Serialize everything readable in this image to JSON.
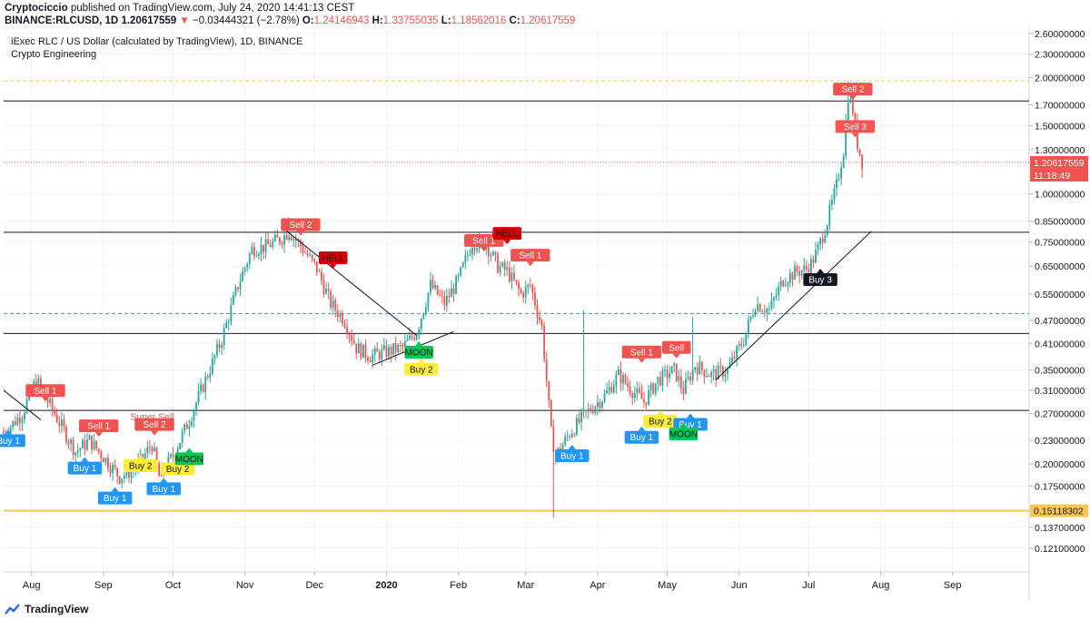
{
  "header": {
    "author": "Cryptociccio",
    "published_text": "published on TradingView.com, July 24, 2020 14:41:13 CEST",
    "symbol": "BINANCE:RLCUSD, 1D",
    "last": "1.20617559",
    "change": "−0.03444321 (−2.78%)",
    "o_label": "O:",
    "o": "1.24146943",
    "h_label": "H:",
    "h": "1.33755035",
    "l_label": "L:",
    "l": "1.18562016",
    "c_label": "C:",
    "c": "1.20617559"
  },
  "footer": {
    "brand": "TradingView"
  },
  "colors": {
    "up": "#26a69a",
    "down": "#ef5350",
    "buy": "#2196f3",
    "sell": "#ef5350",
    "moon": "#00c853",
    "hell": "#d50000",
    "buy2": "#ffeb3b",
    "buy3": "#131722",
    "yellow_level": "#f9c74f",
    "blue_dashed": "#2196f3"
  },
  "chart_data": {
    "type": "candlestick",
    "title": "iExec RLC / US Dollar (calculated by TradingView), 1D, BINANCE",
    "indicator": "Crypto Engineering",
    "y_scale": "log",
    "ylim": [
      0.105,
      2.7
    ],
    "xlim": [
      "2019-07-20",
      "2020-10-04"
    ],
    "y_ticks": [
      "2.60000000",
      "2.30000000",
      "2.00000000",
      "1.70000000",
      "1.50000000",
      "1.30000000",
      "1.00000000",
      "0.85000000",
      "0.75000000",
      "0.65000000",
      "0.55000000",
      "0.47000000",
      "0.41000000",
      "0.35000000",
      "0.31000000",
      "0.27000000",
      "0.23000000",
      "0.20000000",
      "0.17500000",
      "0.13700000",
      "0.12100000"
    ],
    "x_ticks": [
      {
        "date": "2019-08-01",
        "label": "Aug",
        "bold": false
      },
      {
        "date": "2019-09-01",
        "label": "Sep",
        "bold": false
      },
      {
        "date": "2019-10-01",
        "label": "Oct",
        "bold": false
      },
      {
        "date": "2019-11-01",
        "label": "Nov",
        "bold": false
      },
      {
        "date": "2019-12-01",
        "label": "Dec",
        "bold": false
      },
      {
        "date": "2020-01-01",
        "label": "2020",
        "bold": true
      },
      {
        "date": "2020-02-01",
        "label": "Feb",
        "bold": false
      },
      {
        "date": "2020-03-01",
        "label": "Mar",
        "bold": false
      },
      {
        "date": "2020-04-01",
        "label": "Apr",
        "bold": false
      },
      {
        "date": "2020-05-01",
        "label": "May",
        "bold": false
      },
      {
        "date": "2020-06-01",
        "label": "Jun",
        "bold": false
      },
      {
        "date": "2020-07-01",
        "label": "Jul",
        "bold": false
      },
      {
        "date": "2020-08-01",
        "label": "Aug",
        "bold": false
      },
      {
        "date": "2020-09-01",
        "label": "Sep",
        "bold": false
      }
    ],
    "price_labels": {
      "last": "1.20617559",
      "countdown": "11:18:49",
      "yellow": "0.15118302"
    },
    "close_anchors": [
      [
        "2019-07-20",
        0.24
      ],
      [
        "2019-07-28",
        0.27
      ],
      [
        "2019-08-03",
        0.33
      ],
      [
        "2019-08-08",
        0.29
      ],
      [
        "2019-08-14",
        0.25
      ],
      [
        "2019-08-20",
        0.215
      ],
      [
        "2019-08-26",
        0.23
      ],
      [
        "2019-09-02",
        0.205
      ],
      [
        "2019-09-08",
        0.185
      ],
      [
        "2019-09-15",
        0.195
      ],
      [
        "2019-09-22",
        0.225
      ],
      [
        "2019-09-25",
        0.185
      ],
      [
        "2019-10-01",
        0.21
      ],
      [
        "2019-10-08",
        0.26
      ],
      [
        "2019-10-15",
        0.33
      ],
      [
        "2019-10-22",
        0.42
      ],
      [
        "2019-10-29",
        0.58
      ],
      [
        "2019-11-04",
        0.72
      ],
      [
        "2019-11-10",
        0.73
      ],
      [
        "2019-11-17",
        0.77
      ],
      [
        "2019-11-20",
        0.8
      ],
      [
        "2019-11-26",
        0.72
      ],
      [
        "2019-12-02",
        0.64
      ],
      [
        "2019-12-08",
        0.52
      ],
      [
        "2019-12-14",
        0.47
      ],
      [
        "2019-12-19",
        0.4
      ],
      [
        "2019-12-25",
        0.38
      ],
      [
        "2020-01-01",
        0.39
      ],
      [
        "2020-01-08",
        0.4
      ],
      [
        "2020-01-14",
        0.44
      ],
      [
        "2020-01-20",
        0.58
      ],
      [
        "2020-01-26",
        0.52
      ],
      [
        "2020-02-01",
        0.6
      ],
      [
        "2020-02-07",
        0.75
      ],
      [
        "2020-02-13",
        0.74
      ],
      [
        "2020-02-18",
        0.65
      ],
      [
        "2020-02-22",
        0.63
      ],
      [
        "2020-02-28",
        0.55
      ],
      [
        "2020-03-03",
        0.58
      ],
      [
        "2020-03-08",
        0.45
      ],
      [
        "2020-03-12",
        0.24
      ],
      [
        "2020-03-14",
        0.21
      ],
      [
        "2020-03-20",
        0.24
      ],
      [
        "2020-03-27",
        0.27
      ],
      [
        "2020-04-04",
        0.3
      ],
      [
        "2020-04-10",
        0.34
      ],
      [
        "2020-04-16",
        0.31
      ],
      [
        "2020-04-21",
        0.29
      ],
      [
        "2020-04-27",
        0.33
      ],
      [
        "2020-05-04",
        0.35
      ],
      [
        "2020-05-08",
        0.31
      ],
      [
        "2020-05-13",
        0.36
      ],
      [
        "2020-05-20",
        0.34
      ],
      [
        "2020-05-27",
        0.35
      ],
      [
        "2020-06-03",
        0.42
      ],
      [
        "2020-06-08",
        0.52
      ],
      [
        "2020-06-14",
        0.5
      ],
      [
        "2020-06-20",
        0.6
      ],
      [
        "2020-06-26",
        0.63
      ],
      [
        "2020-07-01",
        0.64
      ],
      [
        "2020-07-05",
        0.72
      ],
      [
        "2020-07-09",
        0.85
      ],
      [
        "2020-07-13",
        1.05
      ],
      [
        "2020-07-16",
        1.3
      ],
      [
        "2020-07-18",
        1.8
      ],
      [
        "2020-07-20",
        1.65
      ],
      [
        "2020-07-22",
        1.35
      ],
      [
        "2020-07-24",
        1.206
      ]
    ],
    "levels": [
      {
        "price": 1.96,
        "style": "dashed",
        "color": "#f9c74f"
      },
      {
        "price": 1.74,
        "style": "solid",
        "color": "#131722"
      },
      {
        "price": 0.795,
        "style": "solid",
        "color": "#131722"
      },
      {
        "price": 0.49,
        "style": "dashed",
        "color": "#2196f3"
      },
      {
        "price": 0.435,
        "style": "solid",
        "color": "#131722"
      },
      {
        "price": 0.275,
        "style": "solid",
        "color": "#131722"
      },
      {
        "price": 0.1512,
        "style": "solid",
        "color": "#f9c74f",
        "thick": true
      },
      {
        "price": 1.206,
        "style": "dotted",
        "color": "#ef5350"
      }
    ],
    "trendlines": [
      {
        "from": [
          "2019-07-20",
          0.31
        ],
        "to": [
          "2019-08-05",
          0.26
        ]
      },
      {
        "from": [
          "2019-11-18",
          0.81
        ],
        "to": [
          "2020-01-14",
          0.43
        ]
      },
      {
        "from": [
          "2019-12-26",
          0.36
        ],
        "to": [
          "2020-01-30",
          0.44
        ]
      },
      {
        "from": [
          "2020-05-22",
          0.33
        ],
        "to": [
          "2020-07-28",
          0.8
        ]
      }
    ],
    "signals": [
      {
        "text": "Sell 1",
        "date": "2019-08-07",
        "price": 0.29,
        "type": "sell",
        "pos": "above"
      },
      {
        "text": "Buy 1",
        "date": "2019-07-22",
        "price": 0.245,
        "type": "buy",
        "pos": "below"
      },
      {
        "text": "Sell 1",
        "date": "2019-08-30",
        "price": 0.235,
        "type": "sell",
        "pos": "above"
      },
      {
        "text": "Buy 1",
        "date": "2019-08-24",
        "price": 0.208,
        "type": "buy",
        "pos": "below"
      },
      {
        "text": "Buy 1",
        "date": "2019-09-06",
        "price": 0.174,
        "type": "buy",
        "pos": "below"
      },
      {
        "text": "Buy 2",
        "date": "2019-09-17",
        "price": 0.211,
        "type": "buy2",
        "pos": "below"
      },
      {
        "text": "Super Sell",
        "date": "2019-09-22",
        "price": 0.26,
        "type": "supersell",
        "pos": "above"
      },
      {
        "text": "Sell 2",
        "date": "2019-09-23",
        "price": 0.237,
        "type": "sell",
        "pos": "above"
      },
      {
        "text": "Buy 1",
        "date": "2019-09-27",
        "price": 0.184,
        "type": "buy",
        "pos": "below"
      },
      {
        "text": "Buy 2",
        "date": "2019-10-03",
        "price": 0.207,
        "type": "buy2",
        "pos": "below"
      },
      {
        "text": "MOON",
        "date": "2019-10-08",
        "price": 0.22,
        "type": "moon",
        "pos": "below"
      },
      {
        "text": "Sell 2",
        "date": "2019-11-25",
        "price": 0.78,
        "type": "sell",
        "pos": "above"
      },
      {
        "text": "HELL",
        "date": "2019-12-09",
        "price": 0.64,
        "type": "hell",
        "pos": "above"
      },
      {
        "text": "MOON",
        "date": "2020-01-15",
        "price": 0.415,
        "type": "moon",
        "pos": "below"
      },
      {
        "text": "Buy 2",
        "date": "2020-01-16",
        "price": 0.375,
        "type": "buy2",
        "pos": "below"
      },
      {
        "text": "Sell 1",
        "date": "2020-02-12",
        "price": 0.71,
        "type": "sell",
        "pos": "above"
      },
      {
        "text": "HELL",
        "date": "2020-02-22",
        "price": 0.74,
        "type": "hell",
        "pos": "above"
      },
      {
        "text": "Sell 1",
        "date": "2020-03-03",
        "price": 0.65,
        "type": "sell",
        "pos": "above"
      },
      {
        "text": "Buy 1",
        "date": "2020-03-21",
        "price": 0.224,
        "type": "buy",
        "pos": "below"
      },
      {
        "text": "Sell 1",
        "date": "2020-04-20",
        "price": 0.365,
        "type": "sell",
        "pos": "above"
      },
      {
        "text": "Buy 2",
        "date": "2020-04-28",
        "price": 0.275,
        "type": "buy2",
        "pos": "below"
      },
      {
        "text": "Buy 1",
        "date": "2020-04-20",
        "price": 0.25,
        "type": "buy",
        "pos": "below"
      },
      {
        "text": "Sell",
        "date": "2020-05-05",
        "price": 0.375,
        "type": "sell",
        "pos": "above"
      },
      {
        "text": "Buy 1",
        "date": "2020-05-11",
        "price": 0.27,
        "type": "buy",
        "pos": "below"
      },
      {
        "text": "MOON",
        "date": "2020-05-08",
        "price": 0.255,
        "type": "moon",
        "pos": "below"
      },
      {
        "text": "Buy 3",
        "date": "2020-07-06",
        "price": 0.64,
        "type": "buy3",
        "pos": "below"
      },
      {
        "text": "Sell 2",
        "date": "2020-07-20",
        "price": 1.75,
        "type": "sell",
        "pos": "above"
      },
      {
        "text": "Sell 3",
        "date": "2020-07-21",
        "price": 1.4,
        "type": "sell3",
        "pos": "above"
      }
    ]
  }
}
